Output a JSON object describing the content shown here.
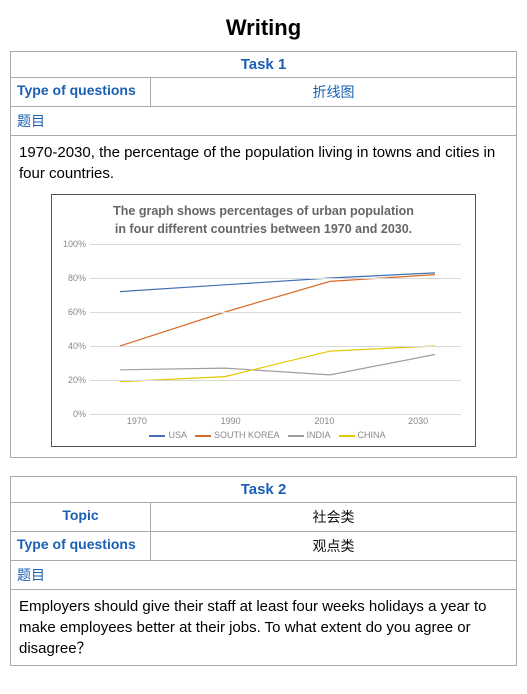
{
  "page_title": "Writing",
  "task1": {
    "header": "Task 1",
    "type_label": "Type of questions",
    "type_value": "折线图",
    "timu_label": "题目",
    "desc": "1970-2030, the percentage of the population living in towns and cities in four countries.",
    "chart": {
      "type": "line",
      "title_l1": "The graph shows percentages of urban population",
      "title_l2": "in four different countries between 1970 and 2030.",
      "ylim": [
        0,
        100
      ],
      "ytick_step": 20,
      "x_categories": [
        "1970",
        "1990",
        "2010",
        "2030"
      ],
      "grid_color": "#d9d9d9",
      "background_color": "#ffffff",
      "series": [
        {
          "name": "USA",
          "color": "#4270b5",
          "values": [
            72,
            76,
            80,
            83
          ]
        },
        {
          "name": "SOUTH KOREA",
          "color": "#d86b2b",
          "values": [
            40,
            60,
            78,
            82
          ]
        },
        {
          "name": "INDIA",
          "color": "#9e9e9e",
          "values": [
            26,
            27,
            23,
            35
          ]
        },
        {
          "name": "CHINA",
          "color": "#e4c800",
          "values": [
            19,
            22,
            37,
            40
          ]
        }
      ],
      "label_fontsize": 9,
      "title_fontsize": 12.5
    }
  },
  "task2": {
    "header": "Task 2",
    "topic_label": "Topic",
    "topic_value": "社会类",
    "type_label": "Type of questions",
    "type_value": "观点类",
    "timu_label": "题目",
    "desc": "Employers should give their staff at least four weeks holidays a year to make employees better at their jobs. To what extent do you agree or disagree？"
  }
}
